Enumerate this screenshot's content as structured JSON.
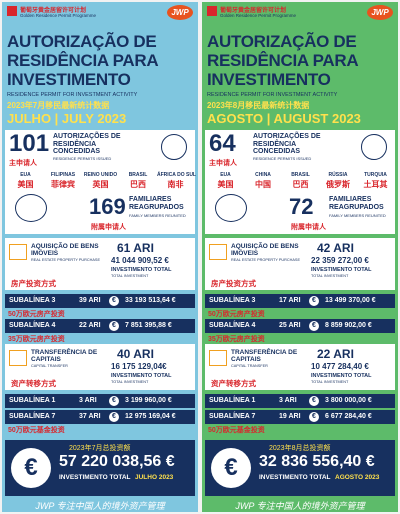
{
  "currency_symbol": "€",
  "columns": [
    {
      "logo_cn": "葡萄牙黄金居留许可计划",
      "logo_en": "Golden Residence Permit Programme",
      "brand": "JWP",
      "title": "AUTORIZAÇÃO DE RESIDÊNCIA PARA INVESTIMENTO",
      "subtitle": "RESIDENCE PERMIT FOR INVESTMENT ACTIVITY",
      "title_cn": "2023年7月移民最新统计数据",
      "month": "JULHO | JULY 2023",
      "permits": {
        "count": "101",
        "label": "AUTORIZAÇÕES DE RESIDÊNCIA CONCEDIDAS",
        "sublabel": "RESIDENCE PERMITS ISSUED",
        "cn": "主申请人"
      },
      "countries": [
        {
          "name": "EUA",
          "cn": "美国"
        },
        {
          "name": "FILIPINAS",
          "cn": "菲律宾"
        },
        {
          "name": "REINO UNIDO",
          "cn": "英国"
        },
        {
          "name": "BRASIL",
          "cn": "巴西"
        },
        {
          "name": "ÁFRICA DO SUL",
          "cn": "南非"
        }
      ],
      "family": {
        "count": "169",
        "label": "FAMILIARES REAGRUPADOS",
        "sublabel": "FAMILY MEMBERS REUNITED",
        "cn": "附属申请人"
      },
      "real_estate": {
        "label": "AQUISIÇÃO DE BENS IMÓVEIS",
        "sublabel": "REAL ESTATE PROPERTY PURCHASE",
        "cn": "房产投资方式",
        "ari": "61 ARI",
        "amount": "41 044 909,52 €",
        "total_label": "INVESTIMENTO TOTAL",
        "total_sublabel": "TOTAL INVESTMENT"
      },
      "real_estate_items": [
        {
          "name": "SUBALÍNEA 3",
          "ari": "39 ARI",
          "amount": "33 193 513,64 €",
          "cn": "50万欧元房产投资"
        },
        {
          "name": "SUBALÍNEA 4",
          "ari": "22 ARI",
          "amount": "7 851 395,88 €",
          "cn": "35万欧元房产投资"
        }
      ],
      "capital": {
        "label": "TRANSFERÊNCIA DE CAPITAIS",
        "sublabel": "CAPITAL TRANSFER",
        "cn": "资产转移方式",
        "ari": "40 ARI",
        "amount": "16 175 129,04€",
        "total_label": "INVESTIMENTO TOTAL",
        "total_sublabel": "TOTAL INVESTMENT"
      },
      "capital_items": [
        {
          "name": "SUBALÍNEA 1",
          "ari": "3 ARI",
          "amount": "3 199 960,00 €"
        },
        {
          "name": "SUBALÍNEA 7",
          "ari": "37 ARI",
          "amount": "12 975 169,04 €",
          "cn": "50万欧元基金投资"
        }
      ],
      "total": {
        "cn": "2023年7月总投资额",
        "amount": "57 220 038,56 €",
        "label": "INVESTIMENTO TOTAL",
        "month": "JULHO 2023"
      },
      "footer": "JWP 专注中国人的境外资产管理"
    },
    {
      "logo_cn": "葡萄牙黄金居留许可计划",
      "logo_en": "Golden Residence Permit Programme",
      "brand": "JWP",
      "title": "AUTORIZAÇÃO DE RESIDÊNCIA PARA INVESTIMENTO",
      "subtitle": "RESIDENCE PERMIT FOR INVESTMENT ACTIVITY",
      "title_cn": "2023年8月移民最新统计数据",
      "month": "AGOSTO | AUGUST 2023",
      "permits": {
        "count": "64",
        "label": "AUTORIZAÇÕES DE RESIDÊNCIA CONCEDIDAS",
        "sublabel": "RESIDENCE PERMITS ISSUED",
        "cn": "主申请人"
      },
      "countries": [
        {
          "name": "EUA",
          "cn": "美国"
        },
        {
          "name": "CHINA",
          "cn": "中国"
        },
        {
          "name": "BRASIL",
          "cn": "巴西"
        },
        {
          "name": "RÚSSIA",
          "cn": "俄罗斯"
        },
        {
          "name": "TURQUIA",
          "cn": "土耳其"
        }
      ],
      "family": {
        "count": "72",
        "label": "FAMILIARES REAGRUPADOS",
        "sublabel": "FAMILY MEMBERS REUNITED",
        "cn": "附属申请人"
      },
      "real_estate": {
        "label": "AQUISIÇÃO DE BENS IMÓVEIS",
        "sublabel": "REAL ESTATE PROPERTY PURCHASE",
        "cn": "房产投资方式",
        "ari": "42 ARI",
        "amount": "22 359 272,00 €",
        "total_label": "INVESTIMENTO TOTAL",
        "total_sublabel": "TOTAL INVESTMENT"
      },
      "real_estate_items": [
        {
          "name": "SUBALÍNEA 3",
          "ari": "17 ARI",
          "amount": "13 499 370,00 €",
          "cn": "50万欧元房产投资"
        },
        {
          "name": "SUBALÍNEA 4",
          "ari": "25 ARI",
          "amount": "8 859 902,00 €",
          "cn": "35万欧元房产投资"
        }
      ],
      "capital": {
        "label": "TRANSFERÊNCIA DE CAPITAIS",
        "sublabel": "CAPITAL TRANSFER",
        "cn": "资产转移方式",
        "ari": "22 ARI",
        "amount": "10 477 284,40 €",
        "total_label": "INVESTIMENTO TOTAL",
        "total_sublabel": "TOTAL INVESTMENT"
      },
      "capital_items": [
        {
          "name": "SUBALÍNEA 1",
          "ari": "3 ARI",
          "amount": "3 800 000,00 €"
        },
        {
          "name": "SUBALÍNEA 7",
          "ari": "19 ARI",
          "amount": "6 677 284,40 €",
          "cn": "50万欧元基金投资"
        }
      ],
      "total": {
        "cn": "2023年8月总投资额",
        "amount": "32 836 556,40 €",
        "label": "INVESTIMENTO TOTAL",
        "month": "AGOSTO 2023"
      },
      "footer": "JWP 专注中国人的境外资产管理"
    }
  ]
}
